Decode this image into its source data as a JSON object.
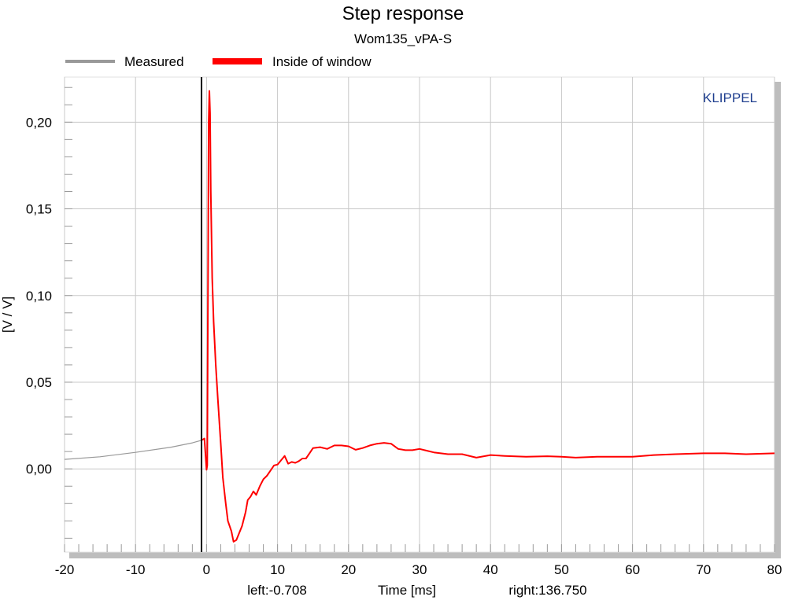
{
  "chart_data": {
    "type": "line",
    "title": "Step response",
    "subtitle": "Wom135_vPA-S",
    "xlabel": "Time [ms]",
    "ylabel": "[V / V]",
    "xlim": [
      -20,
      80
    ],
    "ylim": [
      -0.048,
      0.226
    ],
    "x_ticks": [
      -20,
      -10,
      0,
      10,
      20,
      30,
      40,
      50,
      60,
      70,
      80
    ],
    "x_tick_labels": [
      "-20",
      "-10",
      "0",
      "10",
      "20",
      "30",
      "40",
      "50",
      "60",
      "70",
      "80"
    ],
    "y_ticks": [
      0.0,
      0.05,
      0.1,
      0.15,
      0.2
    ],
    "y_tick_labels": [
      "0,00",
      "0,05",
      "0,10",
      "0,15",
      "0,20"
    ],
    "grid": true,
    "legend_position": "top",
    "window_left_marker": -0.708,
    "left_text": "left:-0.708",
    "right_text": "right:136.750",
    "brand": "KLIPPEL",
    "colors": {
      "measured": "#999999",
      "inside_window": "#ff0000",
      "grid": "#c8c8c8",
      "brand": "#1f3f8f",
      "frame_shadow": "#bdbdbd"
    },
    "series": [
      {
        "name": "Measured",
        "color": "#999999",
        "x": [
          -20,
          -15,
          -10,
          -5,
          -2,
          -0.708
        ],
        "y": [
          0.0055,
          0.007,
          0.0095,
          0.0125,
          0.015,
          0.0165
        ]
      },
      {
        "name": "Inside of window",
        "color": "#ff0000",
        "x": [
          -0.708,
          -0.3,
          0.0,
          0.1,
          0.2,
          0.3,
          0.4,
          0.5,
          0.6,
          0.8,
          1.0,
          1.3,
          1.6,
          2.0,
          2.3,
          2.7,
          3.0,
          3.5,
          3.8,
          4.2,
          4.6,
          5.0,
          5.5,
          5.8,
          6.2,
          6.6,
          7.0,
          7.5,
          8.0,
          8.5,
          9.0,
          9.5,
          10.0,
          10.5,
          11.0,
          11.5,
          12.0,
          12.5,
          13.0,
          13.5,
          14.0,
          14.5,
          15.0,
          16.0,
          17.0,
          18.0,
          19.0,
          20.0,
          21.0,
          22.0,
          23.0,
          24.0,
          25.0,
          26.0,
          27.0,
          28.0,
          29.0,
          30.0,
          31.0,
          32.0,
          34.0,
          36.0,
          38.0,
          40.0,
          42.0,
          45.0,
          48.0,
          50.0,
          52.0,
          55.0,
          58.0,
          60.0,
          63.0,
          66.0,
          70.0,
          73.0,
          76.0,
          80.0
        ],
        "y": [
          0.0165,
          0.0175,
          -0.0005,
          0.002,
          0.1,
          0.2,
          0.218,
          0.205,
          0.16,
          0.11,
          0.085,
          0.06,
          0.04,
          0.015,
          -0.005,
          -0.02,
          -0.03,
          -0.036,
          -0.042,
          -0.041,
          -0.037,
          -0.033,
          -0.025,
          -0.018,
          -0.016,
          -0.013,
          -0.015,
          -0.01,
          -0.006,
          -0.004,
          -0.001,
          0.002,
          0.0025,
          0.005,
          0.0075,
          0.003,
          0.004,
          0.0035,
          0.0045,
          0.006,
          0.006,
          0.009,
          0.012,
          0.0125,
          0.0115,
          0.0135,
          0.0135,
          0.013,
          0.011,
          0.012,
          0.0135,
          0.0145,
          0.015,
          0.0145,
          0.0115,
          0.0108,
          0.0108,
          0.0115,
          0.0105,
          0.0095,
          0.0085,
          0.0085,
          0.0065,
          0.008,
          0.0075,
          0.007,
          0.0073,
          0.007,
          0.0065,
          0.007,
          0.007,
          0.007,
          0.008,
          0.0085,
          0.009,
          0.009,
          0.0085,
          0.009
        ]
      }
    ]
  }
}
